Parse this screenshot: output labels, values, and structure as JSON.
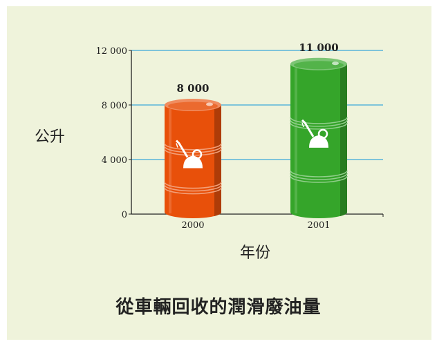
{
  "chart_data": {
    "type": "bar",
    "title": "從車輛回收的潤滑廢油量",
    "xlabel": "年份",
    "ylabel": "公升",
    "categories": [
      "2000",
      "2001"
    ],
    "values": [
      8000,
      11000
    ],
    "value_labels": [
      "8 000",
      "11 000"
    ],
    "ylim": [
      0,
      12000
    ],
    "yticks": [
      0,
      4000,
      8000,
      12000
    ],
    "ytick_labels": [
      "0",
      "4 000",
      "8 000",
      "12 000"
    ],
    "grid": true,
    "bar_style": "oil-barrel",
    "bar_colors": [
      "#e8500a",
      "#35a52a"
    ],
    "grid_color": "#3aa7d9",
    "background": "#eff3db"
  }
}
